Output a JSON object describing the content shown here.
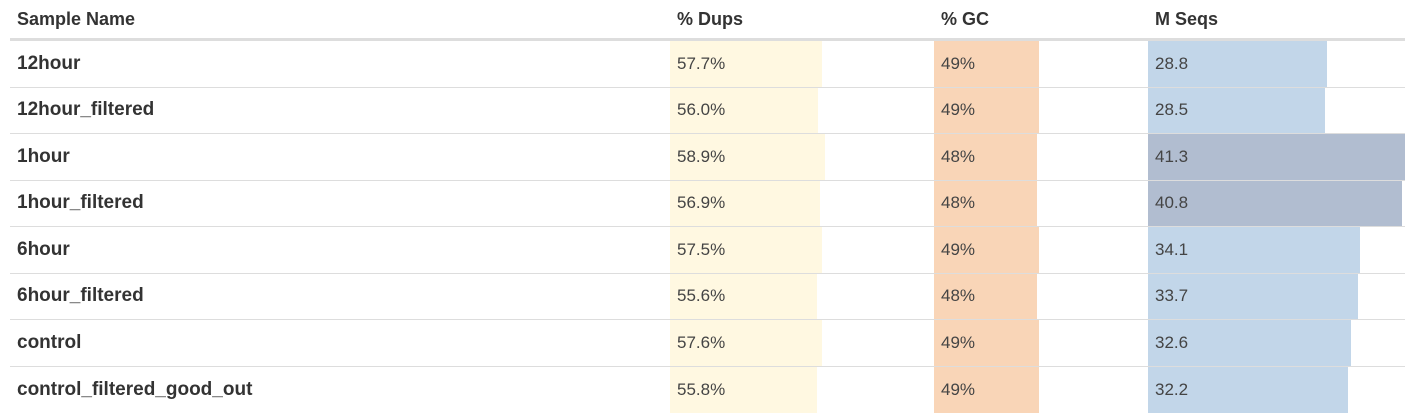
{
  "columns": {
    "sample": "Sample Name",
    "dups": "% Dups",
    "gc": "% GC",
    "seqs": "M Seqs"
  },
  "colors": {
    "dups_bar": "#fff8e1",
    "gc_bar": "#f9d5b7",
    "seqs_bar_light": "#c2d6e9",
    "seqs_bar_dark": "#b1bdd0",
    "row_border": "#dddddd"
  },
  "scales": {
    "dups_max": 100,
    "gc_max": 100,
    "seqs_max": 41.3
  },
  "rows": [
    {
      "name": "12hour",
      "dups": "57.7%",
      "dups_v": 57.7,
      "gc": "49%",
      "gc_v": 49,
      "seqs": "28.8",
      "seqs_v": 28.8
    },
    {
      "name": "12hour_filtered",
      "dups": "56.0%",
      "dups_v": 56.0,
      "gc": "49%",
      "gc_v": 49,
      "seqs": "28.5",
      "seqs_v": 28.5
    },
    {
      "name": "1hour",
      "dups": "58.9%",
      "dups_v": 58.9,
      "gc": "48%",
      "gc_v": 48,
      "seqs": "41.3",
      "seqs_v": 41.3
    },
    {
      "name": "1hour_filtered",
      "dups": "56.9%",
      "dups_v": 56.9,
      "gc": "48%",
      "gc_v": 48,
      "seqs": "40.8",
      "seqs_v": 40.8
    },
    {
      "name": "6hour",
      "dups": "57.5%",
      "dups_v": 57.5,
      "gc": "49%",
      "gc_v": 49,
      "seqs": "34.1",
      "seqs_v": 34.1
    },
    {
      "name": "6hour_filtered",
      "dups": "55.6%",
      "dups_v": 55.6,
      "gc": "48%",
      "gc_v": 48,
      "seqs": "33.7",
      "seqs_v": 33.7
    },
    {
      "name": "control",
      "dups": "57.6%",
      "dups_v": 57.6,
      "gc": "49%",
      "gc_v": 49,
      "seqs": "32.6",
      "seqs_v": 32.6
    },
    {
      "name": "control_filtered_good_out",
      "dups": "55.8%",
      "dups_v": 55.8,
      "gc": "49%",
      "gc_v": 49,
      "seqs": "32.2",
      "seqs_v": 32.2
    }
  ]
}
